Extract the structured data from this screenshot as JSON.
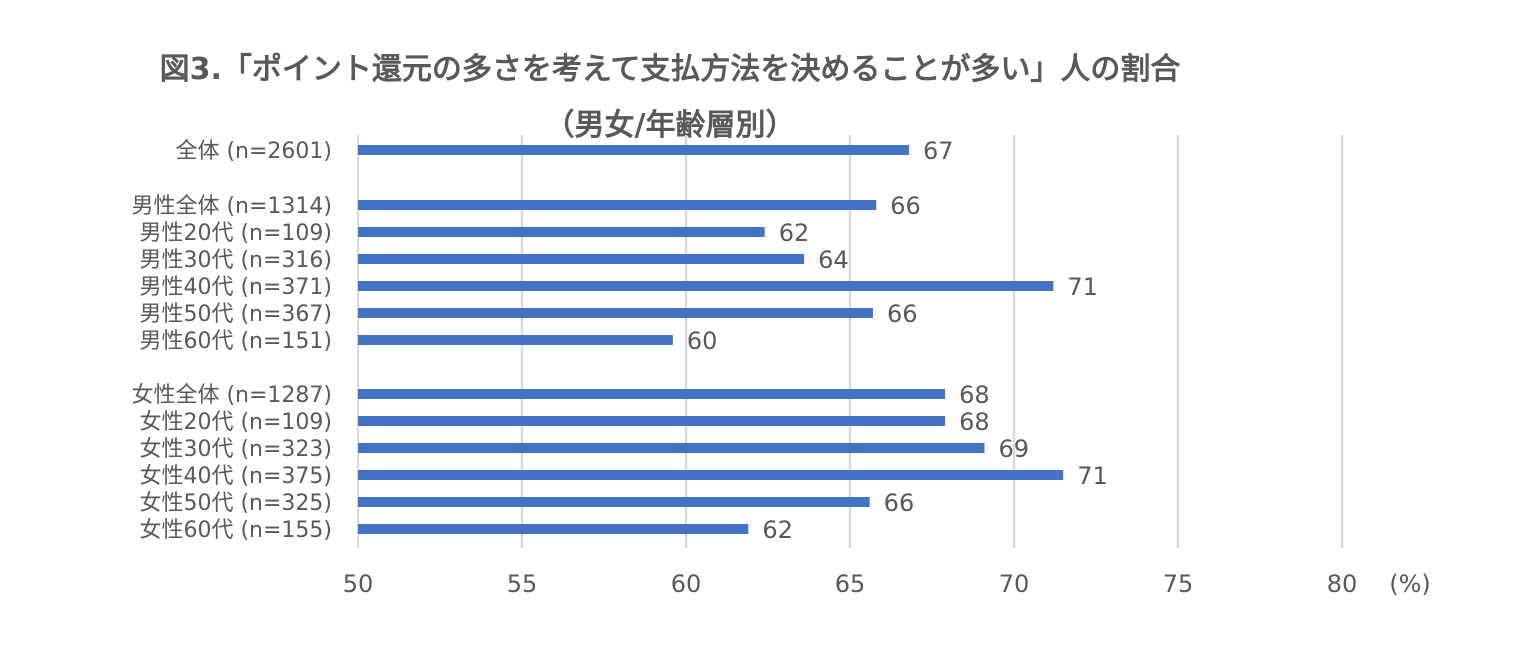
{
  "chart_data": {
    "type": "bar",
    "orientation": "horizontal",
    "title": "図3.「ポイント還元の多さを考えて支払方法を決めることが多い」人の割合",
    "subtitle": "（男女/年齢層別）",
    "unit_label": "(%)",
    "xlim": [
      50,
      80
    ],
    "x_ticks": [
      50,
      55,
      60,
      65,
      70,
      75,
      80
    ],
    "grid": true,
    "bar_color": "#4472C4",
    "grid_color": "#D9D9D9",
    "text_color": "#595959",
    "categories": [
      "全体 (n=2601)",
      "男性全体 (n=1314)",
      "男性20代 (n=109)",
      "男性30代 (n=316)",
      "男性40代 (n=371)",
      "男性50代 (n=367)",
      "男性60代 (n=151)",
      "女性全体 (n=1287)",
      "女性20代 (n=109)",
      "女性30代 (n=323)",
      "女性40代 (n=375)",
      "女性50代 (n=325)",
      "女性60代 (n=155)"
    ],
    "values": [
      66.8,
      65.8,
      62.4,
      63.6,
      71.2,
      65.7,
      59.6,
      67.9,
      67.9,
      69.1,
      71.5,
      65.6,
      61.9
    ],
    "data_labels": [
      "67",
      "66",
      "62",
      "64",
      "71",
      "66",
      "60",
      "68",
      "68",
      "69",
      "71",
      "66",
      "62"
    ]
  }
}
